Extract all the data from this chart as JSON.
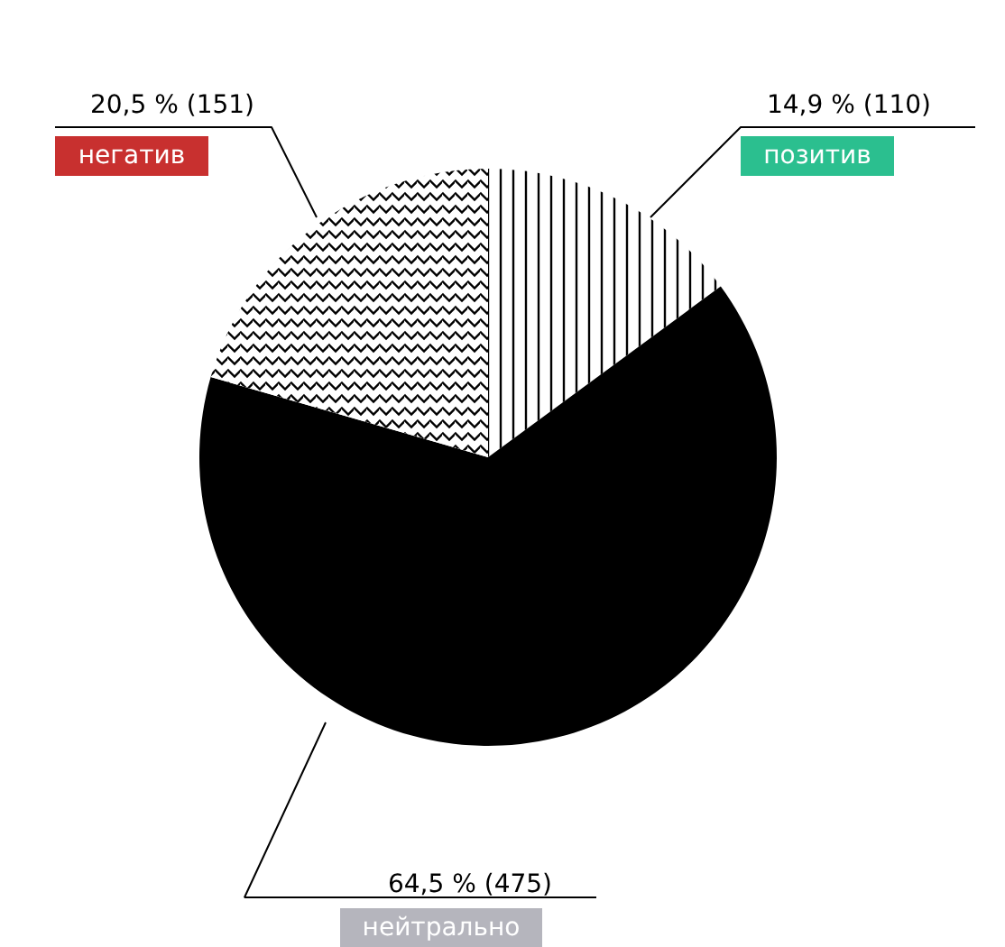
{
  "chart_data": {
    "type": "pie",
    "categories": [
      "позитив",
      "нейтрально",
      "негатив"
    ],
    "values": [
      14.9,
      64.5,
      20.5
    ],
    "colors": [
      "#ffffff",
      "#000000",
      "#ffffff"
    ],
    "value_labels": [
      "14,9 % (110)",
      "64,5 % (475)",
      "20,5 % (151)"
    ]
  }
}
